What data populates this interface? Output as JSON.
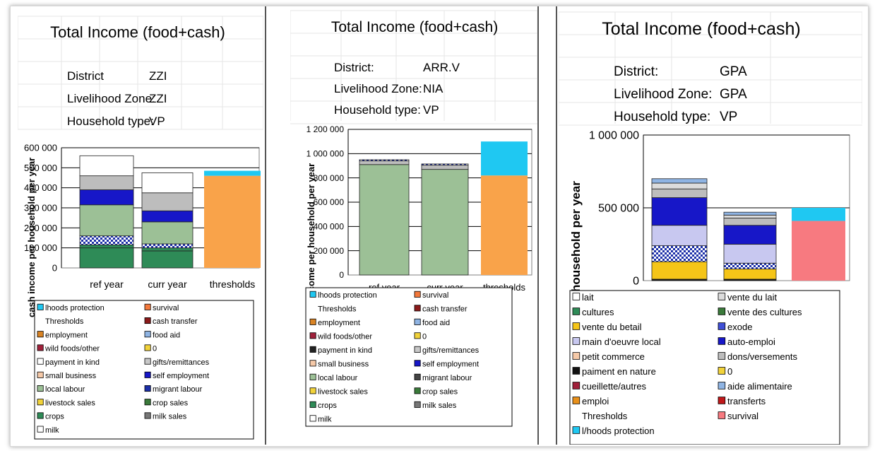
{
  "chart_data": [
    {
      "type": "bar",
      "stacked": true,
      "title": "Total Income (food+cash)",
      "info": [
        {
          "label": "District",
          "value": "ZZI"
        },
        {
          "label": "Livelihood Zone:",
          "value": "ZZI"
        },
        {
          "label": "Household type:",
          "value": "VP"
        }
      ],
      "ylabel": "cash income per household per year",
      "ylim": [
        0,
        600000
      ],
      "yticks": [
        "0",
        "100 000",
        "200 000",
        "300 000",
        "400 000",
        "500 000",
        "600 000"
      ],
      "categories": [
        "ref year",
        "curr year",
        "thresholds"
      ],
      "series": [
        {
          "name": "crops",
          "values": [
            100000,
            85000,
            0
          ],
          "color": "#2e8b57"
        },
        {
          "name": "crop sales",
          "values": [
            15000,
            15000,
            0
          ],
          "color": "#2e8b57"
        },
        {
          "name": "migrant labour",
          "values": [
            45000,
            20000,
            0
          ],
          "color": "#1c2fa8"
        },
        {
          "name": "local labour",
          "values": [
            155000,
            110000,
            0
          ],
          "color": "#9cc096"
        },
        {
          "name": "self employment",
          "values": [
            75000,
            55000,
            0
          ],
          "color": "#1717c8"
        },
        {
          "name": "gifts/remittances",
          "values": [
            70000,
            90000,
            0
          ],
          "color": "#bdbdbd"
        },
        {
          "name": "payment in kind",
          "values": [
            100000,
            100000,
            0
          ],
          "color": "#ffffff"
        },
        {
          "name": "survival",
          "values": [
            0,
            0,
            460000
          ],
          "color": "#f9a34a"
        },
        {
          "name": "lhoods protection",
          "values": [
            0,
            0,
            25000
          ],
          "color": "#1fc8f2"
        }
      ],
      "legend": [
        {
          "name": "lhoods protection",
          "color": "#1fc8f2"
        },
        {
          "name": "survival",
          "color": "#f4793b"
        },
        {
          "name": "Thresholds",
          "color": ""
        },
        {
          "name": "cash transfer",
          "color": "#8b1a1a"
        },
        {
          "name": "employment",
          "color": "#d98324"
        },
        {
          "name": "food aid",
          "color": "#8fb4e3"
        },
        {
          "name": "wild foods/other",
          "color": "#a0203a"
        },
        {
          "name": "0",
          "color": "#f2d33a"
        },
        {
          "name": "payment in kind",
          "color": "#ffffff"
        },
        {
          "name": "gifts/remittances",
          "color": "#c8c8c8"
        },
        {
          "name": "small business",
          "color": "#f5c9a8"
        },
        {
          "name": "self employment",
          "color": "#1717c8"
        },
        {
          "name": "local labour",
          "color": "#9cc096"
        },
        {
          "name": "migrant labour",
          "color": "#1c2fa8"
        },
        {
          "name": "livestock sales",
          "color": "#f2d33a"
        },
        {
          "name": "crop sales",
          "color": "#3a7a3a"
        },
        {
          "name": "crops",
          "color": "#2e8b57"
        },
        {
          "name": "milk sales",
          "color": "#777777"
        },
        {
          "name": "milk",
          "color": "#ffffff"
        }
      ]
    },
    {
      "type": "bar",
      "stacked": true,
      "title": "Total Income (food+cash)",
      "info": [
        {
          "label": "District:",
          "value": "ARR.V"
        },
        {
          "label": "Livelihood Zone:",
          "value": "NIA"
        },
        {
          "label": "Household type:",
          "value": "VP"
        }
      ],
      "ylabel": "cash income per household per year",
      "ylim": [
        0,
        1200000
      ],
      "yticks": [
        "0",
        "200 000",
        "400 000",
        "600 000",
        "800 000",
        "1 000 000",
        "1 200 000"
      ],
      "categories": [
        "ref year",
        "curr year",
        "thresholds"
      ],
      "series": [
        {
          "name": "local labour",
          "values": [
            910000,
            870000,
            0
          ],
          "color": "#9cc096"
        },
        {
          "name": "gifts/remittances",
          "values": [
            30000,
            35000,
            0
          ],
          "color": "#bdbdbd"
        },
        {
          "name": "migrant labour",
          "values": [
            10000,
            10000,
            0
          ],
          "color": "#444444"
        },
        {
          "name": "survival",
          "values": [
            0,
            0,
            820000
          ],
          "color": "#f9a34a"
        },
        {
          "name": "lhoods protection",
          "values": [
            0,
            0,
            280000
          ],
          "color": "#1fc8f2"
        }
      ],
      "legend": [
        {
          "name": "lhoods protection",
          "color": "#1fc8f2"
        },
        {
          "name": "survival",
          "color": "#f4793b"
        },
        {
          "name": "Thresholds",
          "color": ""
        },
        {
          "name": "cash transfer",
          "color": "#8b1a1a"
        },
        {
          "name": "employment",
          "color": "#d98324"
        },
        {
          "name": "food aid",
          "color": "#8fb4e3"
        },
        {
          "name": "wild foods/other",
          "color": "#a0203a"
        },
        {
          "name": "0",
          "color": "#f2d33a"
        },
        {
          "name": "payment in kind",
          "color": "#222222"
        },
        {
          "name": "gifts/remittances",
          "color": "#c8c8c8"
        },
        {
          "name": "small business",
          "color": "#f5c9a8"
        },
        {
          "name": "self employment",
          "color": "#1717c8"
        },
        {
          "name": "local labour",
          "color": "#9cc096"
        },
        {
          "name": "migrant labour",
          "color": "#444444"
        },
        {
          "name": "livestock sales",
          "color": "#f2d33a"
        },
        {
          "name": "crop sales",
          "color": "#3a7a3a"
        },
        {
          "name": "crops",
          "color": "#2e8b57"
        },
        {
          "name": "milk sales",
          "color": "#777777"
        },
        {
          "name": "milk",
          "color": "#ffffff"
        }
      ]
    },
    {
      "type": "bar",
      "stacked": true,
      "title": "Total Income (food+cash)",
      "info": [
        {
          "label": "District:",
          "value": "GPA"
        },
        {
          "label": "Livelihood Zone:",
          "value": "GPA"
        },
        {
          "label": "Household type:",
          "value": "VP"
        }
      ],
      "ylabel": "household per year",
      "ylim": [
        0,
        1000000
      ],
      "yticks": [
        "0",
        "500 000",
        "1 000 000"
      ],
      "categories": [
        "",
        "",
        ""
      ],
      "series": [
        {
          "name": "paiment en nature",
          "values": [
            10000,
            10000,
            0
          ],
          "color": "#111111"
        },
        {
          "name": "vente du betail",
          "values": [
            120000,
            70000,
            0
          ],
          "color": "#f5c518"
        },
        {
          "name": "exode",
          "values": [
            110000,
            40000,
            0
          ],
          "color": "#3f4fd6"
        },
        {
          "name": "main d'oeuvre local",
          "values": [
            140000,
            130000,
            0
          ],
          "color": "#c8c8f0"
        },
        {
          "name": "auto-emploi",
          "values": [
            190000,
            130000,
            0
          ],
          "color": "#1717c8"
        },
        {
          "name": "dons/versements",
          "values": [
            60000,
            50000,
            0
          ],
          "color": "#bdbdbd"
        },
        {
          "name": "vente du lait",
          "values": [
            40000,
            20000,
            0
          ],
          "color": "#dcdcdc"
        },
        {
          "name": "aide alimentaire",
          "values": [
            30000,
            20000,
            0
          ],
          "color": "#8fb4e3"
        },
        {
          "name": "survival",
          "values": [
            0,
            0,
            410000
          ],
          "color": "#f77a80"
        },
        {
          "name": "l/hoods protection",
          "values": [
            0,
            0,
            90000
          ],
          "color": "#1fc8f2"
        }
      ],
      "legend": [
        {
          "name": "lait",
          "color": "#ffffff"
        },
        {
          "name": "vente du lait",
          "color": "#dcdcdc"
        },
        {
          "name": "cultures",
          "color": "#2e8b57"
        },
        {
          "name": "vente des cultures",
          "color": "#3a7a3a"
        },
        {
          "name": "vente du betail",
          "color": "#f5c518"
        },
        {
          "name": "exode",
          "color": "#3f4fd6"
        },
        {
          "name": "main d'oeuvre local",
          "color": "#c8c8f0"
        },
        {
          "name": "auto-emploi",
          "color": "#1717c8"
        },
        {
          "name": "petit commerce",
          "color": "#f5c9a8"
        },
        {
          "name": "dons/versements",
          "color": "#bdbdbd"
        },
        {
          "name": "paiment en nature",
          "color": "#111111"
        },
        {
          "name": "0",
          "color": "#f2d33a"
        },
        {
          "name": "cueillette/autres",
          "color": "#a0203a"
        },
        {
          "name": "aide alimentaire",
          "color": "#8fb4e3"
        },
        {
          "name": "emploi",
          "color": "#e8901a"
        },
        {
          "name": "transferts",
          "color": "#c0181a"
        },
        {
          "name": "Thresholds",
          "color": ""
        },
        {
          "name": "survival",
          "color": "#f77a80"
        },
        {
          "name": "l/hoods protection",
          "color": "#1fc8f2"
        }
      ]
    }
  ]
}
